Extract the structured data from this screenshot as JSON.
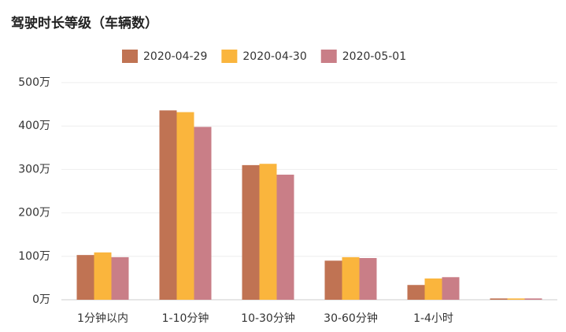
{
  "chart_data": {
    "type": "bar",
    "title": "驾驶时长等级（车辆数）",
    "categories": [
      "1分钟以内",
      "1-10分钟",
      "10-30分钟",
      "30-60分钟",
      "1-4小时",
      null
    ],
    "series": [
      {
        "name": "2020-04-29",
        "color": "#c07353",
        "values": [
          103,
          436,
          310,
          90,
          34,
          3
        ]
      },
      {
        "name": "2020-04-30",
        "color": "#fab53d",
        "values": [
          109,
          432,
          313,
          98,
          49,
          3
        ]
      },
      {
        "name": "2020-05-01",
        "color": "#c97e87",
        "values": [
          98,
          398,
          288,
          96,
          52,
          3
        ]
      }
    ],
    "ylim": [
      0,
      500
    ],
    "yticks": [
      {
        "value": 0,
        "label": "0万"
      },
      {
        "value": 100,
        "label": "100万"
      },
      {
        "value": 200,
        "label": "200万"
      },
      {
        "value": 300,
        "label": "300万"
      },
      {
        "value": 400,
        "label": "400万"
      },
      {
        "value": 500,
        "label": "500万"
      }
    ],
    "grid": true
  }
}
